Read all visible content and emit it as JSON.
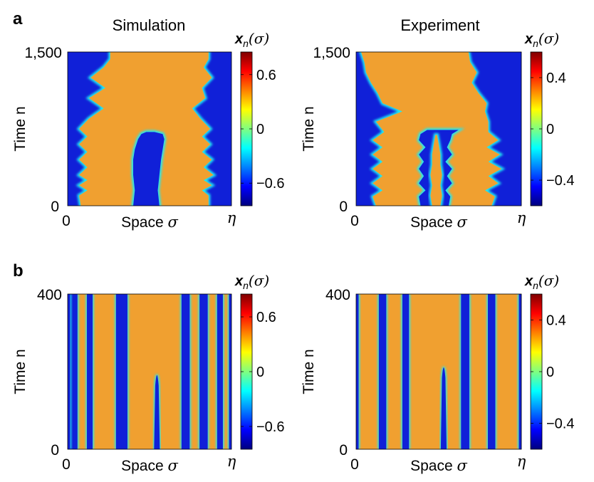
{
  "panels": {
    "a": "a",
    "b": "b"
  },
  "columns": {
    "left": "Simulation",
    "right": "Experiment"
  },
  "colormap": {
    "name": "jet",
    "stops": [
      "#00007f",
      "#0000ff",
      "#0080ff",
      "#00ffff",
      "#80ff80",
      "#ffff00",
      "#ff8000",
      "#ff0000",
      "#7f0000"
    ],
    "field_color": "#f0a030",
    "front_color": "#1020d8"
  },
  "chart_data": [
    {
      "id": "a-simulation",
      "type": "heatmap",
      "row": "a",
      "title": "Simulation",
      "xlabel": "Space",
      "xlabel_symbol": "σ",
      "ylabel": "Time n",
      "x_ticks": [
        "0"
      ],
      "x_end_label": "η",
      "y_ticks": [
        "0",
        "1,500"
      ],
      "ylim": [
        0,
        1500
      ],
      "colorbar": {
        "title": "x",
        "title_sub": "n",
        "title_arg": "(σ)",
        "ticks": [
          "0.6",
          "0",
          "−0.6"
        ],
        "tick_values": [
          0.6,
          0,
          -0.6
        ],
        "range": [
          -0.85,
          0.85
        ]
      },
      "fronts": {
        "left": [
          [
            0,
            0.08
          ],
          [
            100,
            0.07
          ],
          [
            150,
            0.12
          ],
          [
            200,
            0.07
          ],
          [
            250,
            0.12
          ],
          [
            300,
            0.07
          ],
          [
            375,
            0.12
          ],
          [
            450,
            0.07
          ],
          [
            525,
            0.12
          ],
          [
            600,
            0.07
          ],
          [
            675,
            0.12
          ],
          [
            750,
            0.07
          ],
          [
            850,
            0.13
          ],
          [
            950,
            0.22
          ],
          [
            1050,
            0.13
          ],
          [
            1150,
            0.23
          ],
          [
            1250,
            0.14
          ],
          [
            1350,
            0.22
          ],
          [
            1430,
            0.26
          ],
          [
            1500,
            0.26
          ]
        ],
        "right": [
          [
            0,
            0.86
          ],
          [
            100,
            0.86
          ],
          [
            150,
            0.82
          ],
          [
            200,
            0.88
          ],
          [
            250,
            0.83
          ],
          [
            300,
            0.89
          ],
          [
            375,
            0.83
          ],
          [
            450,
            0.88
          ],
          [
            525,
            0.82
          ],
          [
            600,
            0.87
          ],
          [
            675,
            0.82
          ],
          [
            750,
            0.87
          ],
          [
            850,
            0.81
          ],
          [
            950,
            0.76
          ],
          [
            1050,
            0.84
          ],
          [
            1150,
            0.82
          ],
          [
            1250,
            0.88
          ],
          [
            1350,
            0.83
          ],
          [
            1430,
            0.86
          ],
          [
            1500,
            0.86
          ]
        ],
        "domain_left": [
          [
            0,
            0.4
          ],
          [
            150,
            0.41
          ],
          [
            300,
            0.4
          ],
          [
            450,
            0.4
          ],
          [
            550,
            0.41
          ],
          [
            650,
            0.43
          ],
          [
            700,
            0.45
          ],
          [
            720,
            0.48
          ]
        ],
        "domain_right": [
          [
            0,
            0.56
          ],
          [
            150,
            0.55
          ],
          [
            300,
            0.56
          ],
          [
            450,
            0.57
          ],
          [
            550,
            0.58
          ],
          [
            650,
            0.59
          ],
          [
            700,
            0.58
          ],
          [
            720,
            0.53
          ]
        ]
      }
    },
    {
      "id": "a-experiment",
      "type": "heatmap",
      "row": "a",
      "title": "Experiment",
      "xlabel": "Space",
      "xlabel_symbol": "σ",
      "ylabel": "Time n",
      "x_ticks": [
        "0"
      ],
      "x_end_label": "η",
      "y_ticks": [
        "0",
        "1,500"
      ],
      "ylim": [
        0,
        1500
      ],
      "colorbar": {
        "title": "x",
        "title_sub": "n",
        "title_arg": "(σ)",
        "ticks": [
          "0.4",
          "0",
          "−0.4"
        ],
        "tick_values": [
          0.4,
          0,
          -0.4
        ],
        "range": [
          -0.6,
          0.6
        ]
      },
      "fronts": {
        "left": [
          [
            0,
            0.12
          ],
          [
            90,
            0.1
          ],
          [
            150,
            0.16
          ],
          [
            220,
            0.1
          ],
          [
            290,
            0.16
          ],
          [
            360,
            0.1
          ],
          [
            430,
            0.16
          ],
          [
            500,
            0.1
          ],
          [
            570,
            0.16
          ],
          [
            640,
            0.1
          ],
          [
            720,
            0.17
          ],
          [
            820,
            0.12
          ],
          [
            920,
            0.28
          ],
          [
            1000,
            0.16
          ],
          [
            1100,
            0.13
          ],
          [
            1200,
            0.09
          ],
          [
            1300,
            0.06
          ],
          [
            1400,
            0.05
          ],
          [
            1500,
            0.03
          ]
        ],
        "right": [
          [
            0,
            0.82
          ],
          [
            90,
            0.84
          ],
          [
            150,
            0.78
          ],
          [
            220,
            0.86
          ],
          [
            290,
            0.8
          ],
          [
            360,
            0.88
          ],
          [
            430,
            0.8
          ],
          [
            500,
            0.87
          ],
          [
            570,
            0.79
          ],
          [
            640,
            0.86
          ],
          [
            720,
            0.8
          ],
          [
            820,
            0.8
          ],
          [
            920,
            0.78
          ],
          [
            1000,
            0.79
          ],
          [
            1100,
            0.74
          ],
          [
            1200,
            0.7
          ],
          [
            1300,
            0.73
          ],
          [
            1400,
            0.69
          ],
          [
            1500,
            0.68
          ]
        ],
        "domain_left": [
          [
            0,
            0.39
          ],
          [
            90,
            0.38
          ],
          [
            150,
            0.42
          ],
          [
            220,
            0.38
          ],
          [
            290,
            0.41
          ],
          [
            360,
            0.38
          ],
          [
            430,
            0.41
          ],
          [
            500,
            0.38
          ],
          [
            570,
            0.42
          ],
          [
            640,
            0.38
          ],
          [
            700,
            0.39
          ],
          [
            740,
            0.43
          ]
        ],
        "domain_right": [
          [
            0,
            0.56
          ],
          [
            90,
            0.57
          ],
          [
            150,
            0.54
          ],
          [
            220,
            0.58
          ],
          [
            290,
            0.55
          ],
          [
            360,
            0.58
          ],
          [
            430,
            0.54
          ],
          [
            500,
            0.58
          ],
          [
            570,
            0.55
          ],
          [
            640,
            0.57
          ],
          [
            700,
            0.58
          ],
          [
            740,
            0.62
          ]
        ],
        "inner_left": [
          [
            0,
            0.46
          ],
          [
            100,
            0.45
          ],
          [
            200,
            0.46
          ],
          [
            300,
            0.45
          ],
          [
            400,
            0.46
          ],
          [
            500,
            0.46
          ],
          [
            600,
            0.47
          ],
          [
            690,
            0.48
          ]
        ],
        "inner_right": [
          [
            0,
            0.51
          ],
          [
            100,
            0.52
          ],
          [
            200,
            0.51
          ],
          [
            300,
            0.52
          ],
          [
            400,
            0.51
          ],
          [
            500,
            0.51
          ],
          [
            600,
            0.5
          ],
          [
            690,
            0.49
          ]
        ]
      }
    },
    {
      "id": "b-simulation",
      "type": "heatmap",
      "row": "b",
      "title": "",
      "xlabel": "Space",
      "xlabel_symbol": "σ",
      "ylabel": "Time n",
      "x_ticks": [
        "0"
      ],
      "x_end_label": "η",
      "y_ticks": [
        "0",
        "400"
      ],
      "ylim": [
        0,
        400
      ],
      "colorbar": {
        "title": "x",
        "title_sub": "n",
        "title_arg": "(σ)",
        "ticks": [
          "0.6",
          "0",
          "−0.6"
        ],
        "tick_values": [
          0.6,
          0,
          -0.6
        ],
        "range": [
          -0.85,
          0.85
        ]
      },
      "stripes": [
        [
          0.035,
          0.05
        ],
        [
          0.135,
          0.035
        ],
        [
          0.33,
          0.07
        ],
        [
          0.72,
          0.05
        ],
        [
          0.83,
          0.05
        ],
        [
          0.93,
          0.035
        ]
      ],
      "edge_stripes": [
        0.0,
        1.0
      ],
      "spike": {
        "x": 0.545,
        "width": 0.035,
        "top": 210
      }
    },
    {
      "id": "b-experiment",
      "type": "heatmap",
      "row": "b",
      "title": "",
      "xlabel": "Space",
      "xlabel_symbol": "σ",
      "ylabel": "Time n",
      "x_ticks": [
        "0"
      ],
      "x_end_label": "η",
      "y_ticks": [
        "0",
        "400"
      ],
      "ylim": [
        0,
        400
      ],
      "colorbar": {
        "title": "x",
        "title_sub": "n",
        "title_arg": "(σ)",
        "ticks": [
          "0.4",
          "0",
          "−0.4"
        ],
        "tick_values": [
          0.4,
          0,
          -0.4
        ],
        "range": [
          -0.6,
          0.6
        ]
      },
      "stripes": [
        [
          0.16,
          0.045
        ],
        [
          0.3,
          0.04
        ],
        [
          0.66,
          0.05
        ],
        [
          0.82,
          0.045
        ]
      ],
      "edge_stripes": [
        0.0,
        1.0
      ],
      "spike": {
        "x": 0.53,
        "width": 0.035,
        "top": 230
      }
    }
  ]
}
